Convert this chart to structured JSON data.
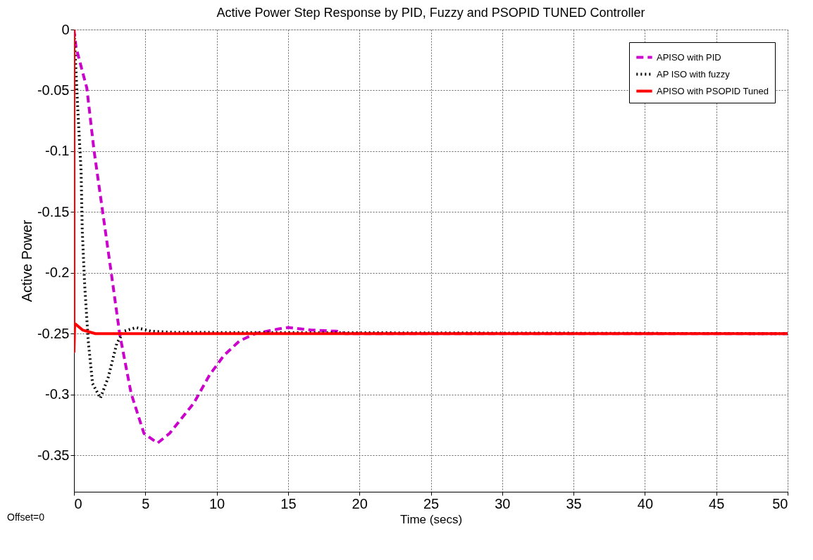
{
  "chart_data": {
    "type": "line",
    "title": "Active Power Step Response by PID, Fuzzy and PSOPID TUNED Controller",
    "xlabel": "Time (secs)",
    "ylabel": "Active Power",
    "annotations": [
      "Offset=0"
    ],
    "xlim": [
      0,
      50
    ],
    "xticks": [
      0,
      5,
      10,
      15,
      20,
      25,
      30,
      35,
      40,
      45,
      50
    ],
    "ylim": [
      -0.38,
      0
    ],
    "yticks": [
      -0.35,
      -0.3,
      -0.25,
      -0.2,
      -0.15,
      -0.1,
      -0.05,
      0
    ],
    "grid": true,
    "legend": "top right",
    "series": [
      {
        "name": "APISO with PID",
        "color": "#cc00cc",
        "line_style": "dashed",
        "x": [
          0,
          0.15,
          0.9,
          1.4,
          2.0,
          2.6,
          3.2,
          4.0,
          4.9,
          5.85,
          6.7,
          8.4,
          9.5,
          10.5,
          11.6,
          12.7,
          14.4,
          15.0,
          16.6,
          18.4,
          19.0,
          25,
          50
        ],
        "values": [
          0,
          -0.015,
          -0.048,
          -0.099,
          -0.149,
          -0.199,
          -0.25,
          -0.299,
          -0.332,
          -0.34,
          -0.332,
          -0.307,
          -0.284,
          -0.268,
          -0.256,
          -0.25,
          -0.246,
          -0.245,
          -0.247,
          -0.248,
          -0.25,
          -0.25,
          -0.25
        ]
      },
      {
        "name": "AP ISO with fuzzy",
        "color": "#000000",
        "line_style": "dotted",
        "x": [
          0,
          0.27,
          0.5,
          0.58,
          0.75,
          1.0,
          1.3,
          1.85,
          2.4,
          3.0,
          3.5,
          4.35,
          5.4,
          7.0,
          50
        ],
        "values": [
          0,
          -0.066,
          -0.117,
          -0.165,
          -0.21,
          -0.256,
          -0.291,
          -0.303,
          -0.286,
          -0.258,
          -0.248,
          -0.245,
          -0.248,
          -0.249,
          -0.25
        ]
      },
      {
        "name": "APISO with PSOPID Tuned",
        "color": "#ff0000",
        "line_style": "solid",
        "x": [
          0,
          0,
          0.05,
          0.1,
          0.6,
          1.5,
          7.2,
          50
        ],
        "values": [
          0,
          -0.265,
          -0.242,
          -0.242,
          -0.247,
          -0.25,
          -0.25,
          -0.25
        ]
      }
    ]
  }
}
